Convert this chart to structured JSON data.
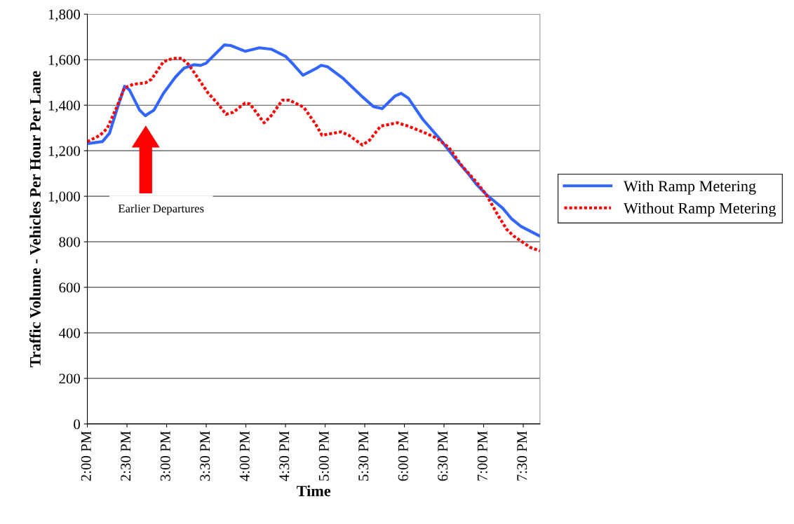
{
  "chart_data": {
    "type": "line",
    "xlabel": "Time",
    "ylabel": "Traffic Volume - Vehicles Per Hour Per Lane",
    "xlim": [
      14,
      19.71
    ],
    "ylim": [
      0,
      1800
    ],
    "xticks": [
      {
        "value": 14,
        "label": "2:00 PM"
      },
      {
        "value": 14.5,
        "label": "2:30 PM"
      },
      {
        "value": 15,
        "label": "3:00 PM"
      },
      {
        "value": 15.5,
        "label": "3:30 PM"
      },
      {
        "value": 16,
        "label": "4:00 PM"
      },
      {
        "value": 16.5,
        "label": "4:30 PM"
      },
      {
        "value": 17,
        "label": "5:00 PM"
      },
      {
        "value": 17.5,
        "label": "5:30 PM"
      },
      {
        "value": 18,
        "label": "6:00 PM"
      },
      {
        "value": 18.5,
        "label": "6:30 PM"
      },
      {
        "value": 19,
        "label": "7:00 PM"
      },
      {
        "value": 19.5,
        "label": "7:30 PM"
      }
    ],
    "yticks": [
      0,
      {
        "value": 200,
        "label": "200"
      },
      {
        "value": 400,
        "label": "400"
      },
      {
        "value": 600,
        "label": "600"
      },
      {
        "value": 800,
        "label": "800"
      },
      {
        "value": 1000,
        "label": "1,000"
      },
      {
        "value": 1200,
        "label": "1,200"
      },
      {
        "value": 1400,
        "label": "1,400"
      },
      {
        "value": 1600,
        "label": "1,600"
      },
      {
        "value": 1800,
        "label": "1,800"
      }
    ],
    "grid": "y",
    "legend": "right",
    "marker": "none",
    "series": [
      {
        "name": "With Ramp Metering",
        "color": "#3366ff",
        "line_style": "solid",
        "x": [
          14.0,
          14.19,
          14.28,
          14.37,
          14.47,
          14.53,
          14.66,
          14.73,
          14.84,
          14.96,
          15.11,
          15.22,
          15.35,
          15.43,
          15.5,
          15.73,
          15.81,
          15.99,
          16.17,
          16.32,
          16.5,
          16.61,
          16.72,
          16.88,
          16.95,
          17.03,
          17.23,
          17.47,
          17.61,
          17.72,
          17.88,
          17.96,
          18.05,
          18.23,
          18.44,
          18.62,
          18.8,
          18.91,
          19.03,
          19.24,
          19.35,
          19.47,
          19.71
        ],
        "values": [
          1231,
          1240,
          1277,
          1378,
          1483,
          1468,
          1378,
          1354,
          1378,
          1452,
          1523,
          1563,
          1578,
          1575,
          1585,
          1665,
          1662,
          1637,
          1652,
          1646,
          1615,
          1575,
          1532,
          1560,
          1575,
          1569,
          1517,
          1437,
          1394,
          1385,
          1440,
          1452,
          1431,
          1339,
          1255,
          1175,
          1102,
          1052,
          1009,
          948,
          902,
          868,
          825
        ]
      },
      {
        "name": "Without Ramp Metering",
        "color": "#ff0000",
        "line_style": "dotted",
        "x": [
          14.0,
          14.16,
          14.25,
          14.37,
          14.47,
          14.58,
          14.73,
          14.81,
          14.87,
          14.96,
          15.08,
          15.19,
          15.28,
          15.4,
          15.52,
          15.64,
          15.75,
          15.84,
          15.99,
          16.05,
          16.23,
          16.32,
          16.46,
          16.55,
          16.73,
          16.88,
          16.96,
          17.2,
          17.3,
          17.47,
          17.56,
          17.7,
          17.91,
          18.05,
          18.27,
          18.41,
          18.56,
          18.73,
          18.91,
          19.03,
          19.18,
          19.29,
          19.38,
          19.59,
          19.71
        ],
        "values": [
          1240,
          1268,
          1298,
          1391,
          1477,
          1492,
          1498,
          1514,
          1545,
          1591,
          1606,
          1606,
          1578,
          1517,
          1455,
          1409,
          1360,
          1369,
          1409,
          1406,
          1323,
          1354,
          1422,
          1422,
          1391,
          1317,
          1268,
          1283,
          1268,
          1225,
          1246,
          1308,
          1323,
          1308,
          1277,
          1255,
          1215,
          1132,
          1062,
          1009,
          917,
          855,
          825,
          775,
          760
        ]
      }
    ],
    "annotations": [
      "Earlier Departures"
    ]
  }
}
